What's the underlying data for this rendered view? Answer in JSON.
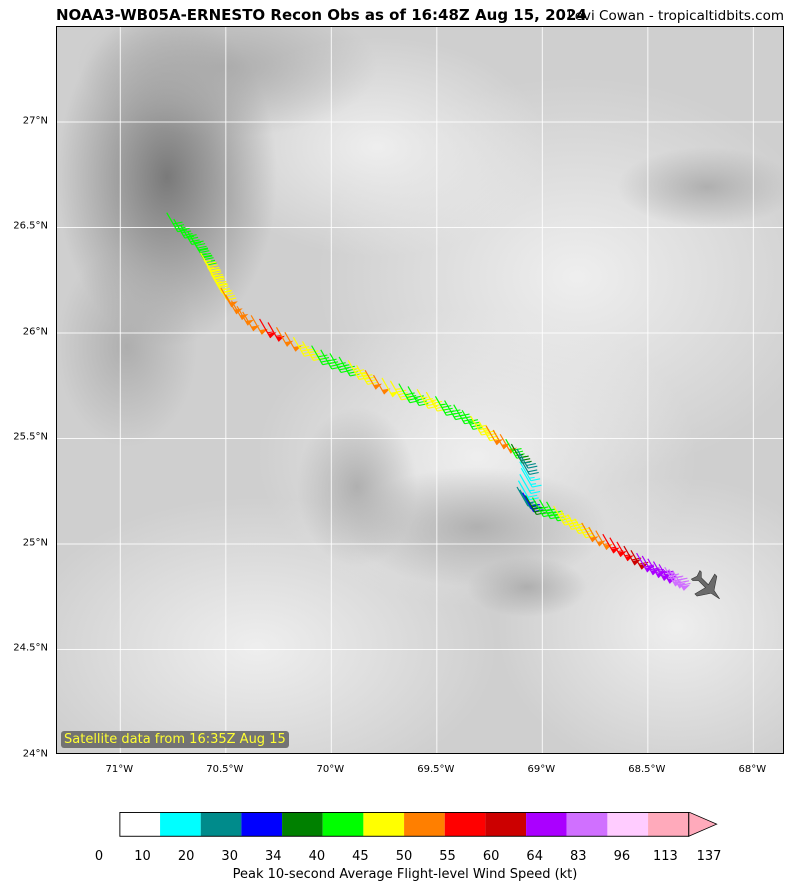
{
  "title": "NOAA3-WB05A-ERNESTO Recon Obs as of 16:48Z Aug 15, 2024",
  "credit": "Levi Cowan - tropicaltidbits.com",
  "satellite_label": "Satellite data from 16:35Z Aug 15",
  "map": {
    "lon_range": [
      -71.3,
      -67.85
    ],
    "lat_range": [
      24.0,
      27.45
    ],
    "lat_ticks": [
      {
        "value": 24.0,
        "label": "24°N"
      },
      {
        "value": 24.5,
        "label": "24.5°N"
      },
      {
        "value": 25.0,
        "label": "25°N"
      },
      {
        "value": 25.5,
        "label": "25.5°N"
      },
      {
        "value": 26.0,
        "label": "26°N"
      },
      {
        "value": 26.5,
        "label": "26.5°N"
      },
      {
        "value": 27.0,
        "label": "27°N"
      }
    ],
    "lon_ticks": [
      {
        "value": -71.0,
        "label": "71°W"
      },
      {
        "value": -70.5,
        "label": "70.5°W"
      },
      {
        "value": -70.0,
        "label": "70°W"
      },
      {
        "value": -69.5,
        "label": "69.5°W"
      },
      {
        "value": -69.0,
        "label": "69°W"
      },
      {
        "value": -68.5,
        "label": "68.5°W"
      },
      {
        "value": -68.0,
        "label": "68°W"
      }
    ],
    "aircraft_icon": "airplane-icon",
    "aircraft_position": {
      "lon": -68.22,
      "lat": 24.8
    },
    "flight_track": [
      {
        "lon": -70.78,
        "lat": 26.57,
        "wind": 42
      },
      {
        "lon": -70.68,
        "lat": 26.48,
        "wind": 40
      },
      {
        "lon": -70.62,
        "lat": 26.38,
        "wind": 47
      },
      {
        "lon": -70.57,
        "lat": 26.28,
        "wind": 48
      },
      {
        "lon": -70.5,
        "lat": 26.18,
        "wind": 52
      },
      {
        "lon": -70.42,
        "lat": 26.1,
        "wind": 53
      },
      {
        "lon": -70.3,
        "lat": 26.05,
        "wind": 57
      },
      {
        "lon": -70.18,
        "lat": 25.98,
        "wind": 47
      },
      {
        "lon": -70.05,
        "lat": 25.92,
        "wind": 42
      },
      {
        "lon": -69.92,
        "lat": 25.87,
        "wind": 46
      },
      {
        "lon": -69.8,
        "lat": 25.8,
        "wind": 53
      },
      {
        "lon": -69.68,
        "lat": 25.76,
        "wind": 43
      },
      {
        "lon": -69.55,
        "lat": 25.72,
        "wind": 46
      },
      {
        "lon": -69.42,
        "lat": 25.66,
        "wind": 42
      },
      {
        "lon": -69.3,
        "lat": 25.58,
        "wind": 49
      },
      {
        "lon": -69.2,
        "lat": 25.52,
        "wind": 52
      },
      {
        "lon": -69.12,
        "lat": 25.45,
        "wind": 28
      },
      {
        "lon": -69.1,
        "lat": 25.36,
        "wind": 15
      },
      {
        "lon": -69.12,
        "lat": 25.27,
        "wind": 22
      },
      {
        "lon": -69.08,
        "lat": 25.23,
        "wind": 38
      },
      {
        "lon": -68.98,
        "lat": 25.2,
        "wind": 44
      },
      {
        "lon": -68.88,
        "lat": 25.14,
        "wind": 47
      },
      {
        "lon": -68.78,
        "lat": 25.08,
        "wind": 53
      },
      {
        "lon": -68.68,
        "lat": 25.03,
        "wind": 58
      },
      {
        "lon": -68.58,
        "lat": 24.97,
        "wind": 62
      },
      {
        "lon": -68.5,
        "lat": 24.93,
        "wind": 68
      },
      {
        "lon": -68.42,
        "lat": 24.89,
        "wind": 88
      },
      {
        "lon": -68.36,
        "lat": 24.86,
        "wind": 90
      }
    ]
  },
  "colorbar": {
    "label": "Peak 10-second Average Flight-level Wind Speed (kt)",
    "ticks": [
      "0",
      "10",
      "20",
      "30",
      "34",
      "40",
      "45",
      "50",
      "55",
      "60",
      "64",
      "83",
      "96",
      "113",
      "137"
    ],
    "colors": [
      "#ffffff",
      "#00ffff",
      "#008b8b",
      "#0000ff",
      "#008000",
      "#00ff00",
      "#ffff00",
      "#ff7f00",
      "#ff0000",
      "#cc0000",
      "#aa00ff",
      "#d070ff",
      "#ffccff",
      "#ffaabb",
      "#ffaabb"
    ]
  }
}
